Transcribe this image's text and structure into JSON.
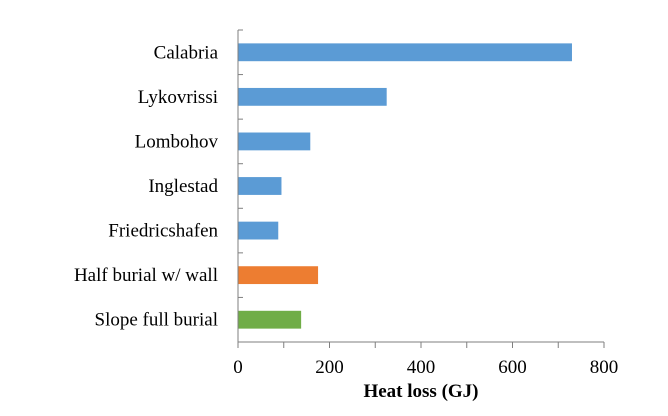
{
  "chart_data": {
    "type": "bar",
    "orientation": "horizontal",
    "title": "",
    "xlabel": "Heat loss (GJ)",
    "ylabel": "",
    "xlim": [
      0,
      800
    ],
    "xticks": [
      0,
      200,
      400,
      600,
      800
    ],
    "grid": false,
    "legend": "none",
    "categories": [
      "Calabria",
      "Lykovrissi",
      "Lombohov",
      "Inglestad",
      "Friedricshafen",
      "Half burial w/ wall",
      "Slope full burial"
    ],
    "values": [
      730,
      325,
      158,
      95,
      88,
      175,
      138
    ],
    "colors": [
      "#5b9bd5",
      "#5b9bd5",
      "#5b9bd5",
      "#5b9bd5",
      "#5b9bd5",
      "#ed7d31",
      "#70ad47"
    ]
  }
}
